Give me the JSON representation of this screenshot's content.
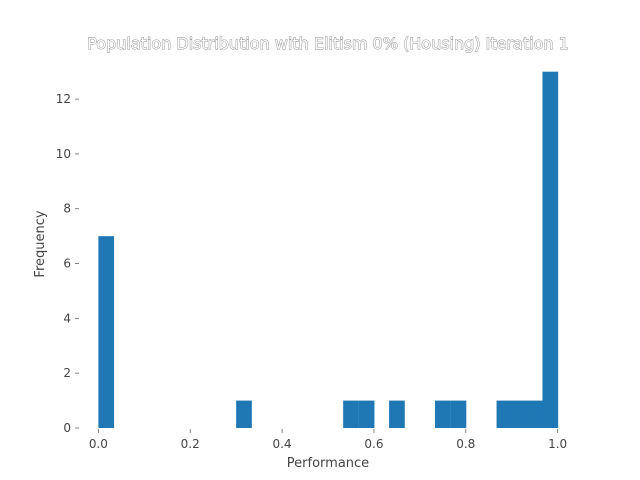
{
  "chart_data": {
    "type": "bar",
    "title": "Population Distribution with Elitism 0% (Housing) Iteration 1",
    "xlabel": "Performance",
    "ylabel": "Frequency",
    "xlim": [
      -0.04,
      1.04
    ],
    "ylim": [
      0,
      13.5
    ],
    "x_ticks": [
      {
        "value": 0.0,
        "label": "0.0"
      },
      {
        "value": 0.2,
        "label": "0.2"
      },
      {
        "value": 0.4,
        "label": "0.4"
      },
      {
        "value": 0.6,
        "label": "0.6"
      },
      {
        "value": 0.8,
        "label": "0.8"
      },
      {
        "value": 1.0,
        "label": "1.0"
      }
    ],
    "y_ticks": [
      {
        "value": 0,
        "label": "0"
      },
      {
        "value": 2,
        "label": "2"
      },
      {
        "value": 4,
        "label": "4"
      },
      {
        "value": 6,
        "label": "6"
      },
      {
        "value": 8,
        "label": "8"
      },
      {
        "value": 10,
        "label": "10"
      },
      {
        "value": 12,
        "label": "12"
      }
    ],
    "bin_width": 0.0333,
    "bins": [
      {
        "start": 0.0,
        "value": 7
      },
      {
        "start": 0.3,
        "value": 1
      },
      {
        "start": 0.533,
        "value": 1
      },
      {
        "start": 0.567,
        "value": 1
      },
      {
        "start": 0.633,
        "value": 1
      },
      {
        "start": 0.733,
        "value": 1
      },
      {
        "start": 0.767,
        "value": 1
      },
      {
        "start": 0.867,
        "value": 1
      },
      {
        "start": 0.9,
        "value": 1
      },
      {
        "start": 0.933,
        "value": 1
      },
      {
        "start": 0.967,
        "value": 13
      }
    ],
    "bar_color": "#1f77b4",
    "grid": false,
    "legend": "none"
  }
}
